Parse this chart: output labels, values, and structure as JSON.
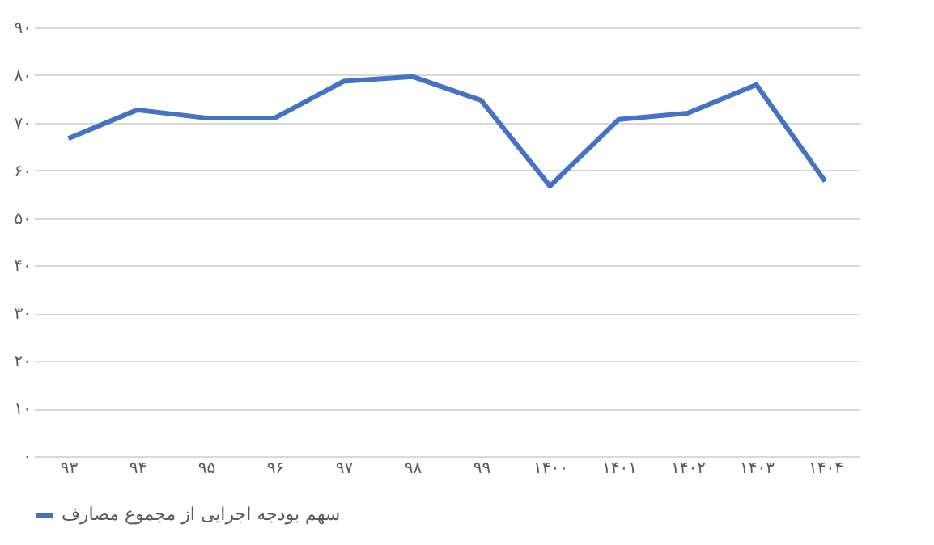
{
  "chart_data": {
    "type": "line",
    "categories": [
      "۹۳",
      "۹۴",
      "۹۵",
      "۹۶",
      "۹۷",
      "۹۸",
      "۹۹",
      "۱۴۰۰",
      "۱۴۰۱",
      "۱۴۰۲",
      "۱۴۰۳",
      "۱۴۰۴"
    ],
    "series": [
      {
        "name": "سهم بودجه اجرایی از مجموع مصارف",
        "color": "#4472c4",
        "values": [
          66.7,
          72.7,
          71,
          71,
          78.7,
          79.7,
          74.7,
          56.7,
          70.7,
          72,
          78,
          57.7
        ]
      }
    ],
    "ylim": [
      0,
      90
    ],
    "yticks": [
      {
        "value": 0,
        "label": "۰"
      },
      {
        "value": 10,
        "label": "۱۰"
      },
      {
        "value": 20,
        "label": "۲۰"
      },
      {
        "value": 30,
        "label": "۳۰"
      },
      {
        "value": 40,
        "label": "۴۰"
      },
      {
        "value": 50,
        "label": "۵۰"
      },
      {
        "value": 60,
        "label": "۶۰"
      },
      {
        "value": 70,
        "label": "۷۰"
      },
      {
        "value": 80,
        "label": "۸۰"
      },
      {
        "value": 90,
        "label": "۹۰"
      }
    ],
    "grid": "y",
    "legend": "bottom",
    "marker": "none",
    "line_style": "solid"
  }
}
